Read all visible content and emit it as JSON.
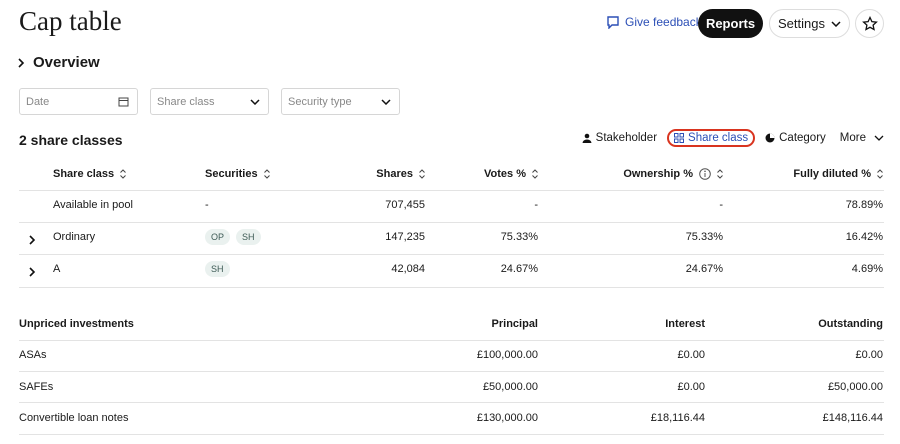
{
  "header": {
    "title": "Cap table",
    "feedback": "Give feedback",
    "reports": "Reports",
    "settings": "Settings"
  },
  "overview": "Overview",
  "filters": {
    "date": "Date",
    "share_class": "Share class",
    "security_type": "Security type"
  },
  "share_classes": {
    "title": "2 share classes",
    "views": [
      "Stakeholder",
      "Share class",
      "Category",
      "More"
    ],
    "columns": [
      "Share class",
      "Securities",
      "Shares",
      "Votes %",
      "Ownership %",
      "Fully diluted %"
    ],
    "rows": [
      {
        "name": "Available in pool",
        "securities": "-",
        "shares": "707,455",
        "votes": "-",
        "ownership": "-",
        "fully_diluted": "78.89%"
      },
      {
        "name": "Ordinary",
        "securities": [
          "OP",
          "SH"
        ],
        "shares": "147,235",
        "votes": "75.33%",
        "ownership": "75.33%",
        "fully_diluted": "16.42%"
      },
      {
        "name": "A",
        "securities": [
          "SH"
        ],
        "shares": "42,084",
        "votes": "24.67%",
        "ownership": "24.67%",
        "fully_diluted": "4.69%"
      }
    ]
  },
  "unpriced": {
    "columns": [
      "Unpriced investments",
      "Principal",
      "Interest",
      "Outstanding"
    ],
    "rows": [
      [
        "ASAs",
        "£100,000.00",
        "£0.00",
        "£0.00"
      ],
      [
        "SAFEs",
        "£50,000.00",
        "£0.00",
        "£50,000.00"
      ],
      [
        "Convertible loan notes",
        "£130,000.00",
        "£18,116.44",
        "£148,116.44"
      ]
    ]
  }
}
